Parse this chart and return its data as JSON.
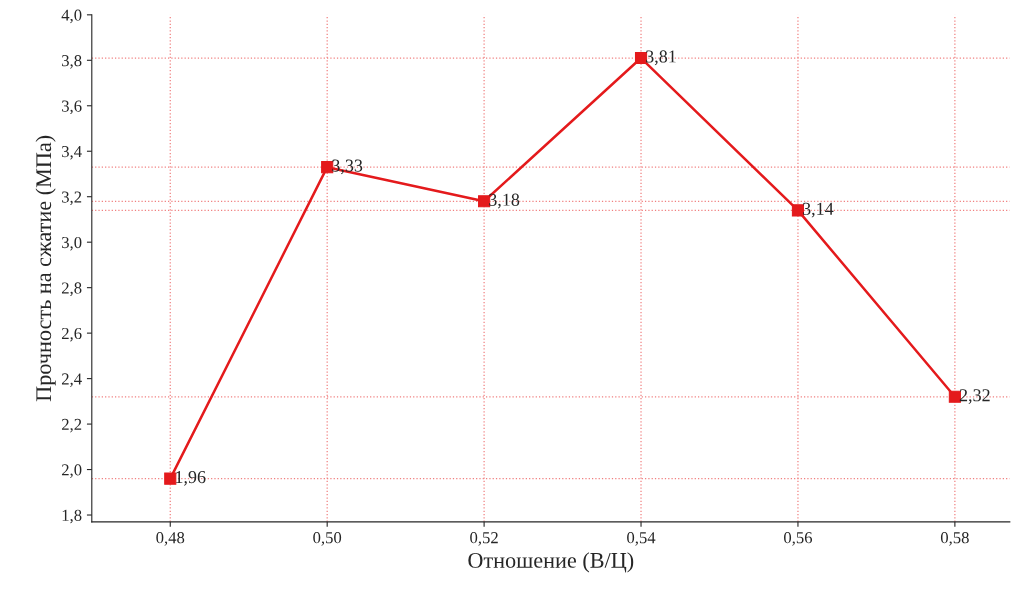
{
  "chart_data": {
    "type": "line",
    "xlabel": "Отношение (В/Ц)",
    "ylabel": "Прочность на сжатие (МПа)",
    "x": [
      0.48,
      0.5,
      0.52,
      0.54,
      0.56,
      0.58
    ],
    "series": [
      {
        "color": "#e41a1c",
        "values": [
          1.96,
          3.33,
          3.18,
          3.81,
          3.14,
          2.32
        ],
        "value_labels": [
          "1,96",
          "3,33",
          "3,18",
          "3,81",
          "3,14",
          "2,32"
        ]
      }
    ],
    "marker": "square",
    "line_style": "solid",
    "grid": false,
    "legend": false,
    "xlim": [
      0.47,
      0.587
    ],
    "xticks": [
      {
        "value": 0.48,
        "label": "0,48"
      },
      {
        "value": 0.5,
        "label": "0,50"
      },
      {
        "value": 0.52,
        "label": "0,52"
      },
      {
        "value": 0.54,
        "label": "0,54"
      },
      {
        "value": 0.56,
        "label": "0,56"
      },
      {
        "value": 0.58,
        "label": "0,58"
      }
    ],
    "ylim": [
      1.77,
      4.0
    ],
    "yticks": [
      {
        "value": 1.8,
        "label": "1,8"
      },
      {
        "value": 2.0,
        "label": "2,0"
      },
      {
        "value": 2.2,
        "label": "2,2"
      },
      {
        "value": 2.4,
        "label": "2,4"
      },
      {
        "value": 2.6,
        "label": "2,6"
      },
      {
        "value": 2.8,
        "label": "2,8"
      },
      {
        "value": 3.0,
        "label": "3,0"
      },
      {
        "value": 3.2,
        "label": "3,2"
      },
      {
        "value": 3.4,
        "label": "3,4"
      },
      {
        "value": 3.6,
        "label": "3,6"
      },
      {
        "value": 3.8,
        "label": "3,8"
      },
      {
        "value": 4.0,
        "label": "4,0"
      }
    ],
    "ref_lines": [
      {
        "axis": "y",
        "value": 1.96,
        "color": "#f08080",
        "line_style": "dotted"
      },
      {
        "axis": "y",
        "value": 3.33,
        "color": "#f08080",
        "line_style": "dotted"
      },
      {
        "axis": "y",
        "value": 3.18,
        "color": "#f08080",
        "line_style": "dotted"
      },
      {
        "axis": "y",
        "value": 3.81,
        "color": "#f08080",
        "line_style": "dotted"
      },
      {
        "axis": "y",
        "value": 3.14,
        "color": "#f08080",
        "line_style": "dotted"
      },
      {
        "axis": "y",
        "value": 2.32,
        "color": "#f08080",
        "line_style": "dotted"
      },
      {
        "axis": "x",
        "value": 0.48,
        "color": "#f08080",
        "line_style": "dotted"
      },
      {
        "axis": "x",
        "value": 0.5,
        "color": "#f08080",
        "line_style": "dotted"
      },
      {
        "axis": "x",
        "value": 0.52,
        "color": "#f08080",
        "line_style": "dotted"
      },
      {
        "axis": "x",
        "value": 0.54,
        "color": "#f08080",
        "line_style": "dotted"
      },
      {
        "axis": "x",
        "value": 0.56,
        "color": "#f08080",
        "line_style": "dotted"
      },
      {
        "axis": "x",
        "value": 0.58,
        "color": "#f08080",
        "line_style": "dotted"
      }
    ]
  }
}
